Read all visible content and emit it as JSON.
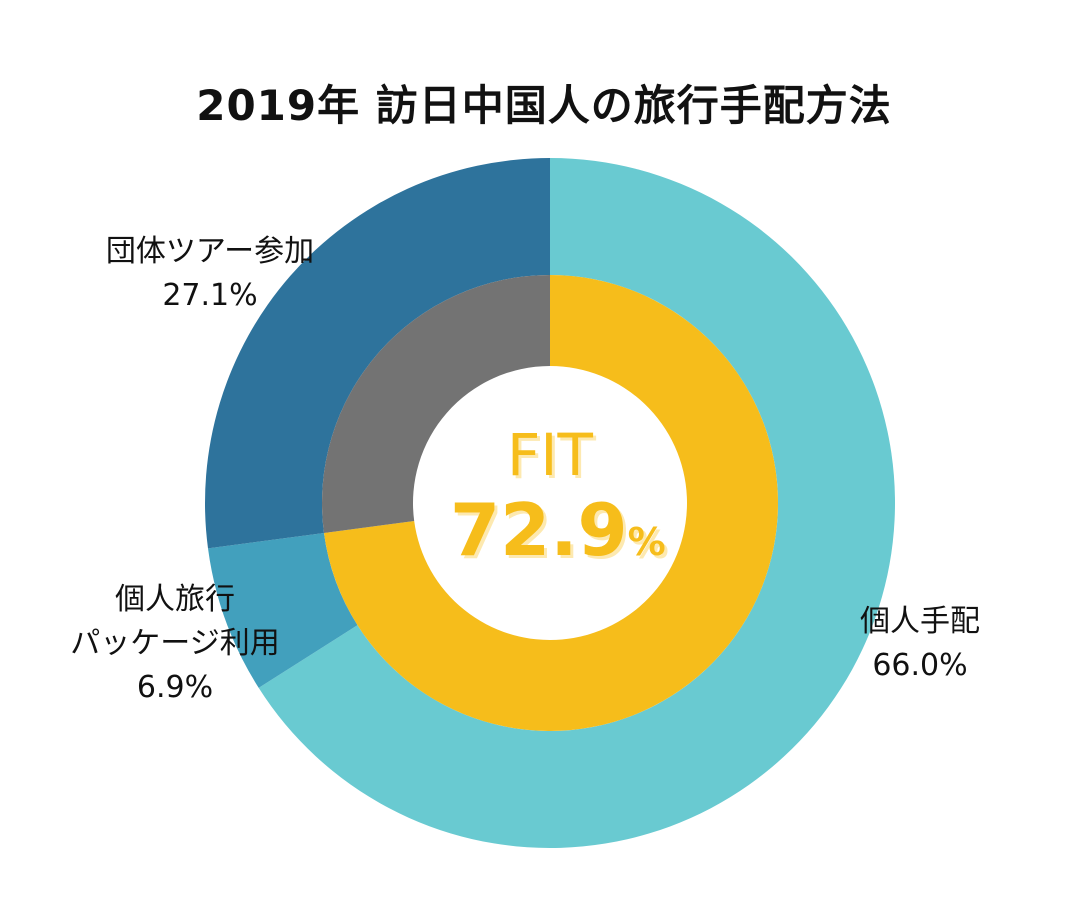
{
  "chart_data": {
    "type": "pie",
    "title": "2019年 訪日中国人の旅行手配方法",
    "outer_ring": {
      "slices": [
        {
          "label": "個人手配",
          "value": 66.0,
          "value_label": "66.0%",
          "color": "#69cad1"
        },
        {
          "label_lines": [
            "個人旅行",
            "パッケージ利用"
          ],
          "value": 6.9,
          "value_label": "6.9%",
          "color": "#42a0bd"
        },
        {
          "label": "団体ツアー参加",
          "value": 27.1,
          "value_label": "27.1%",
          "color": "#2e739c"
        }
      ]
    },
    "inner_ring": {
      "slices": [
        {
          "value": 72.9,
          "color": "#f6bd1b"
        },
        {
          "value": 27.1,
          "color": "#737373"
        }
      ]
    },
    "center_label": {
      "word": "FIT",
      "value": "72.9",
      "unit": "%"
    }
  }
}
